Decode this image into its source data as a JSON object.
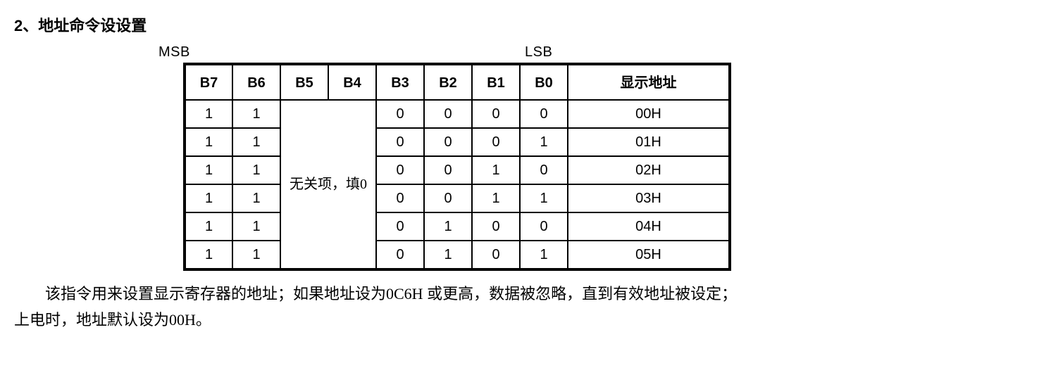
{
  "heading": "2、地址命令设设置",
  "labels": {
    "msb": "MSB",
    "lsb": "LSB"
  },
  "table": {
    "headers": {
      "b7": "B7",
      "b6": "B6",
      "b5": "B5",
      "b4": "B4",
      "b3": "B3",
      "b2": "B2",
      "b1": "B1",
      "b0": "B0",
      "display_addr": "显示地址"
    },
    "merged_note": "无关项，填0",
    "rows": [
      {
        "b7": "1",
        "b6": "1",
        "b3": "0",
        "b2": "0",
        "b1": "0",
        "b0": "0",
        "addr": "00H"
      },
      {
        "b7": "1",
        "b6": "1",
        "b3": "0",
        "b2": "0",
        "b1": "0",
        "b0": "1",
        "addr": "01H"
      },
      {
        "b7": "1",
        "b6": "1",
        "b3": "0",
        "b2": "0",
        "b1": "1",
        "b0": "0",
        "addr": "02H"
      },
      {
        "b7": "1",
        "b6": "1",
        "b3": "0",
        "b2": "0",
        "b1": "1",
        "b0": "1",
        "addr": "03H"
      },
      {
        "b7": "1",
        "b6": "1",
        "b3": "0",
        "b2": "1",
        "b1": "0",
        "b0": "0",
        "addr": "04H"
      },
      {
        "b7": "1",
        "b6": "1",
        "b3": "0",
        "b2": "1",
        "b1": "0",
        "b0": "1",
        "addr": "05H"
      }
    ]
  },
  "description_line1": "该指令用来设置显示寄存器的地址；如果地址设为0C6H 或更高，数据被忽略，直到有效地址被设定；",
  "description_line2": "上电时，地址默认设为00H。"
}
